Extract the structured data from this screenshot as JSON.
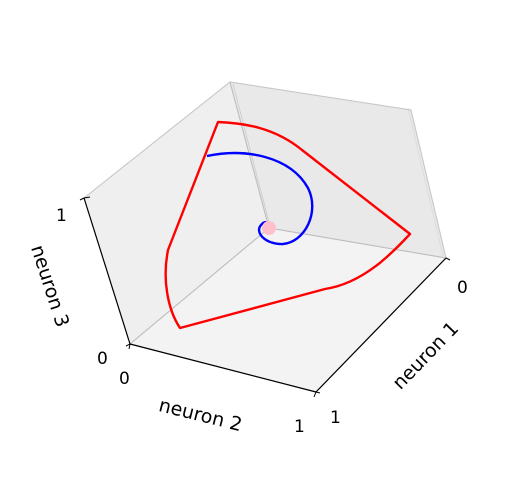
{
  "chart_data": {
    "type": "line",
    "projection": "3d",
    "axes": {
      "x": {
        "label": "neuron 1",
        "ticks": [
          "0",
          "1"
        ],
        "lim": [
          0,
          1
        ]
      },
      "y": {
        "label": "neuron 2",
        "ticks": [
          "0",
          "1"
        ],
        "lim": [
          0,
          1
        ]
      },
      "z": {
        "label": "neuron 3",
        "ticks": [
          "0",
          "1"
        ],
        "lim": [
          0,
          1
        ]
      }
    },
    "grid": false,
    "series": [
      {
        "color": "#0000ff",
        "shape": "inward spiral converging to fixed point",
        "x": [
          0.44,
          0.45,
          0.48,
          0.53,
          0.58,
          0.62,
          0.63,
          0.61,
          0.57,
          0.52,
          0.48,
          0.46,
          0.46,
          0.47,
          0.49,
          0.5
        ],
        "y": [
          0.42,
          0.5,
          0.58,
          0.63,
          0.65,
          0.62,
          0.56,
          0.5,
          0.46,
          0.45,
          0.47,
          0.5,
          0.52,
          0.52,
          0.51,
          0.5
        ],
        "z": [
          0.9,
          0.86,
          0.8,
          0.72,
          0.64,
          0.58,
          0.54,
          0.52,
          0.52,
          0.53,
          0.55,
          0.56,
          0.56,
          0.55,
          0.54,
          0.53
        ]
      },
      {
        "color": "#ff0000",
        "shape": "closed limit cycle",
        "x": [
          0.22,
          0.45,
          0.88,
          0.9,
          0.72,
          0.12,
          0.05,
          0.03,
          0.22
        ],
        "y": [
          0.05,
          0.08,
          0.4,
          0.55,
          0.9,
          0.95,
          0.75,
          0.45,
          0.05
        ],
        "z": [
          0.95,
          0.98,
          0.55,
          0.3,
          0.08,
          0.05,
          0.3,
          0.65,
          0.95
        ]
      }
    ],
    "marker": {
      "label": "",
      "color": "#ffc0cb",
      "x": 0.5,
      "y": 0.5,
      "z": 0.53
    }
  }
}
